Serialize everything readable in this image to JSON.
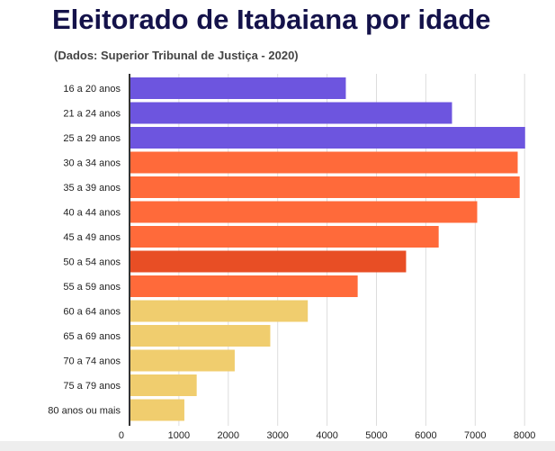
{
  "chart_data": {
    "type": "bar",
    "orientation": "horizontal",
    "title": "Eleitorado de Itabaiana por idade",
    "subtitle": "(Dados: Superior Tribunal de Justiça - 2020)",
    "xlabel": "",
    "ylabel": "",
    "xlim": [
      0,
      8000
    ],
    "ticks": [
      0,
      1000,
      2000,
      3000,
      4000,
      5000,
      6000,
      7000,
      8000
    ],
    "categories": [
      "16 a 20 anos",
      "21 a 24 anos",
      "25 a 29 anos",
      "30 a 34 anos",
      "35 a 39 anos",
      "40 a 44 anos",
      "45 a 49 anos",
      "50 a 54 anos",
      "55 a 59 anos",
      "60 a 64 anos",
      "65 a 69 anos",
      "70 a 74 anos",
      "75 a 79 anos",
      "80 anos ou mais"
    ],
    "values": [
      4380,
      6530,
      8010,
      7860,
      7900,
      7040,
      6260,
      5600,
      4620,
      3610,
      2850,
      2130,
      1360,
      1110
    ],
    "colors": [
      "#6d55df",
      "#6d55df",
      "#6d55df",
      "#ff6a3a",
      "#ff6a3a",
      "#ff6a3a",
      "#ff6a3a",
      "#e84e25",
      "#ff6a3a",
      "#f0cd6e",
      "#f0cd6e",
      "#f0cd6e",
      "#f0cd6e",
      "#f0cd6e"
    ],
    "grid": true,
    "legend": "none"
  }
}
